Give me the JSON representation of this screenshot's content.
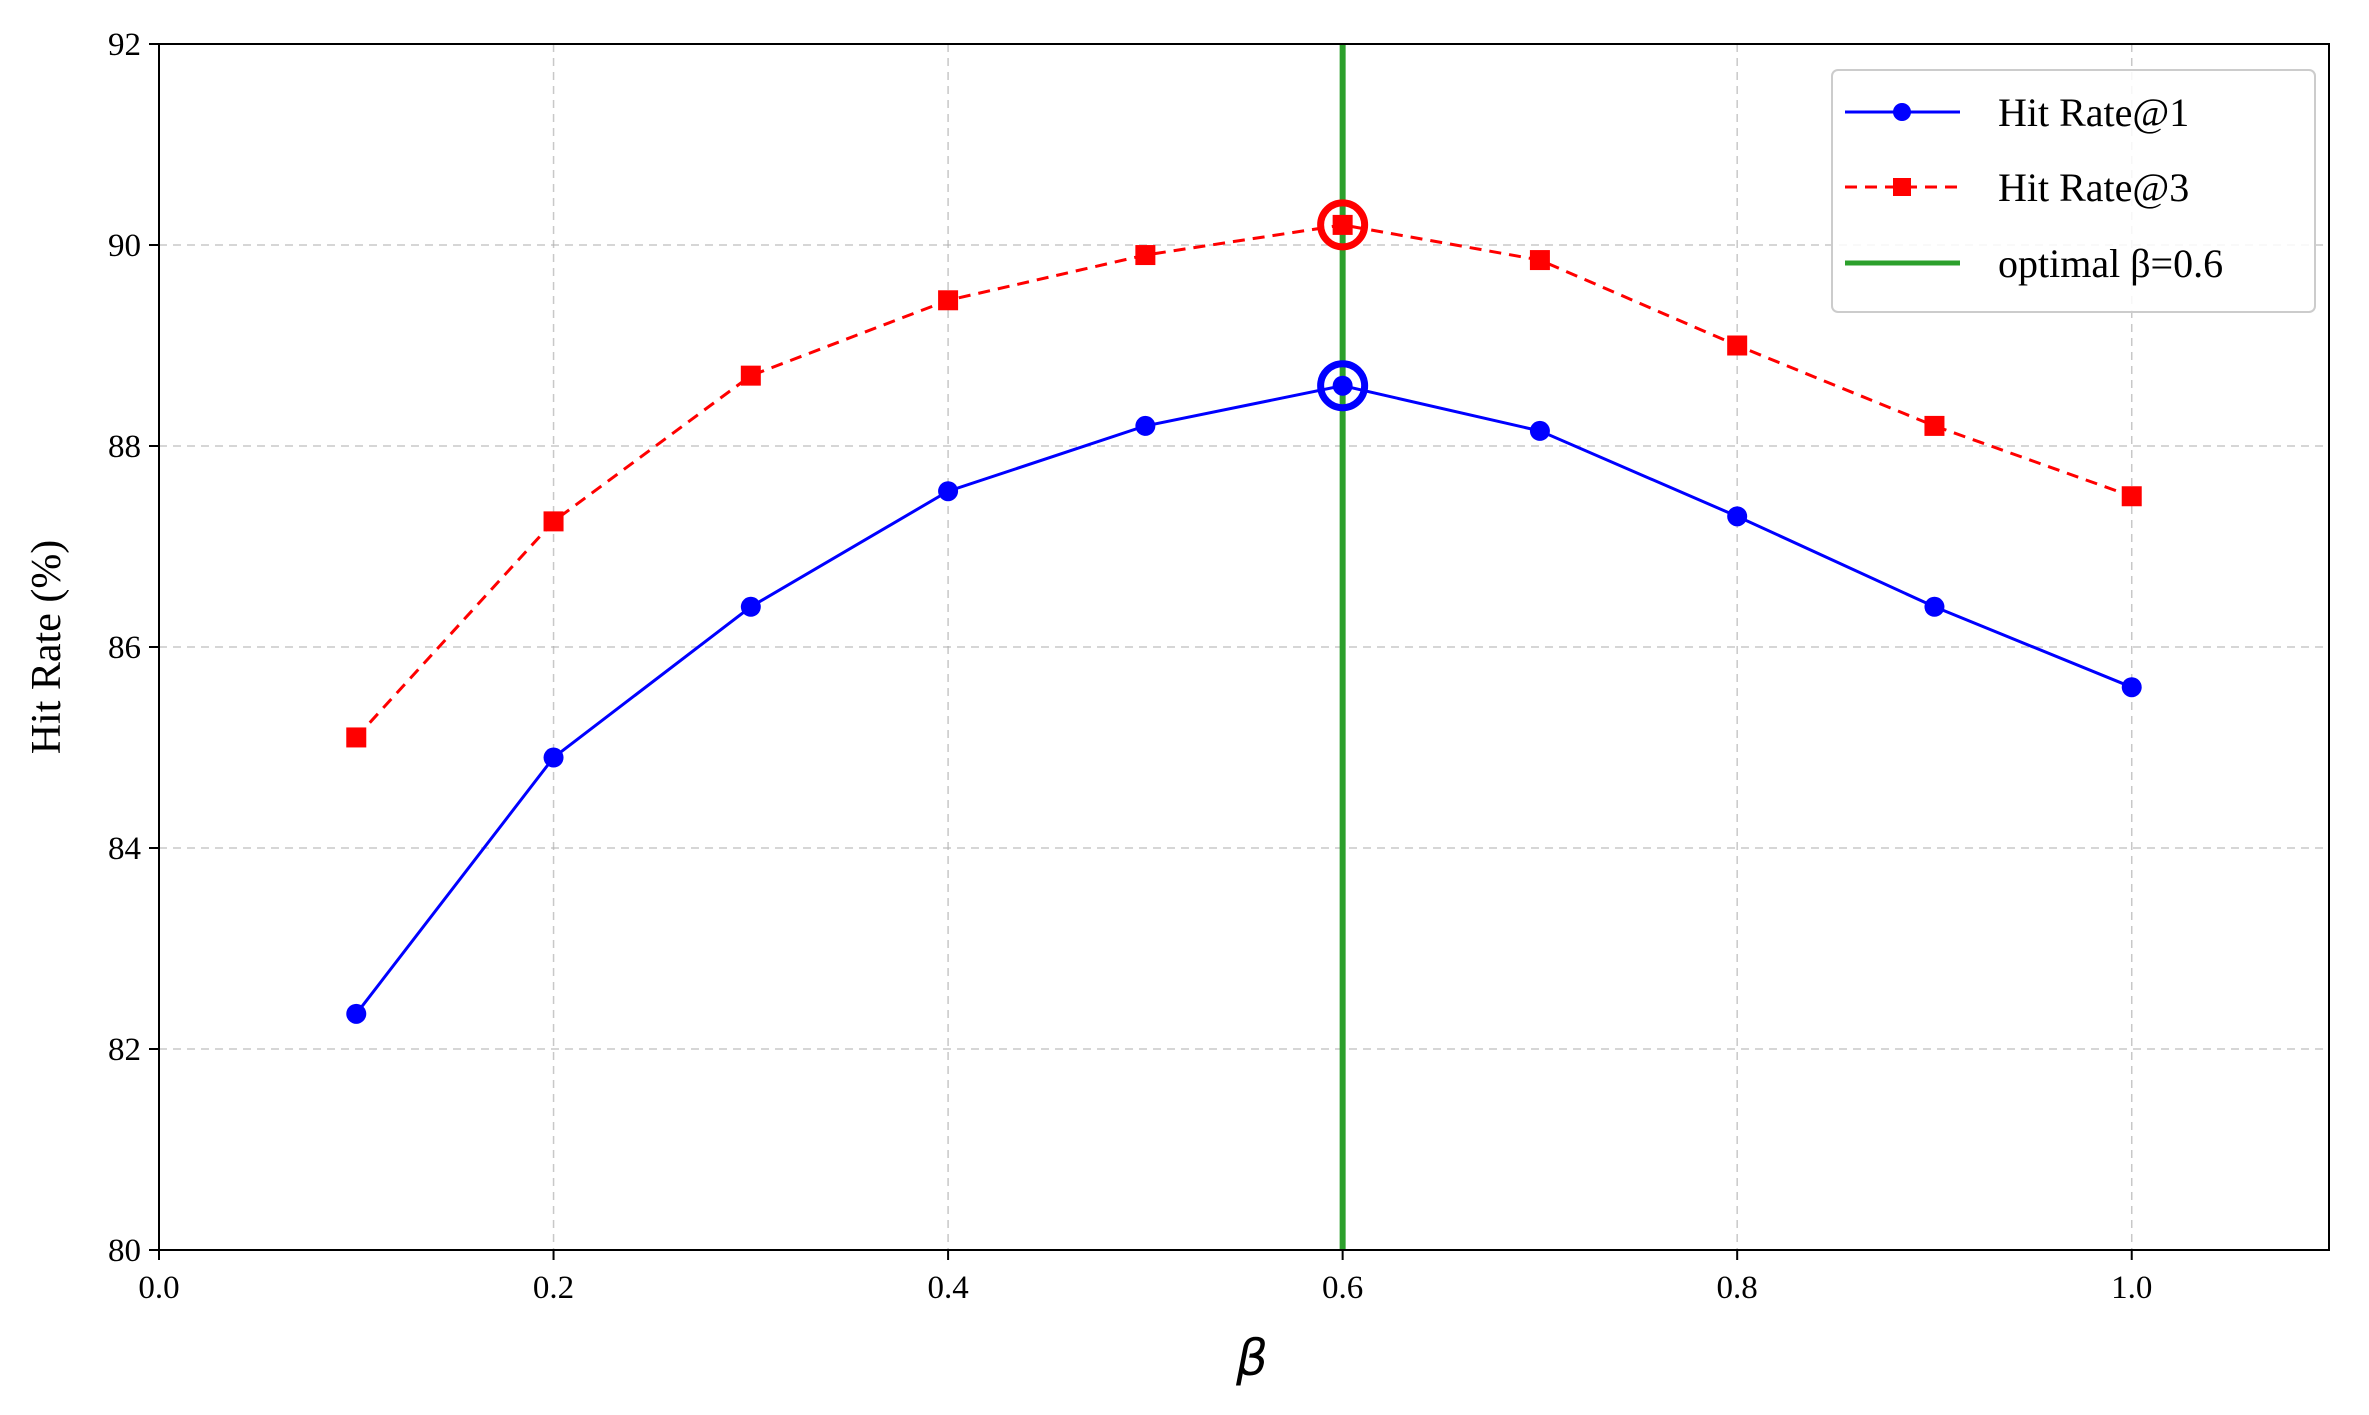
{
  "chart_data": {
    "type": "line",
    "title": "",
    "xlabel": "β",
    "ylabel": "Hit Rate (%)",
    "xlim": [
      0.0,
      1.1
    ],
    "ylim": [
      80,
      92
    ],
    "xticks": [
      0.0,
      0.2,
      0.4,
      0.6,
      0.8,
      1.0
    ],
    "xtick_labels": [
      "0.0",
      "0.2",
      "0.4",
      "0.6",
      "0.8",
      "1.0"
    ],
    "yticks": [
      80,
      82,
      84,
      86,
      88,
      90,
      92
    ],
    "ytick_labels": [
      "80",
      "82",
      "84",
      "86",
      "88",
      "90",
      "92"
    ],
    "grid": true,
    "legend_position": "top-right",
    "x": [
      0.1,
      0.2,
      0.3,
      0.4,
      0.5,
      0.6,
      0.7,
      0.8,
      0.9,
      1.0
    ],
    "series": [
      {
        "name": "Hit Rate@1",
        "color": "#0000ff",
        "marker": "circle",
        "line_style": "solid",
        "values": [
          82.35,
          84.9,
          86.4,
          87.55,
          88.2,
          88.6,
          88.15,
          87.3,
          86.4,
          85.6
        ],
        "highlight_x": 0.6
      },
      {
        "name": "Hit Rate@3",
        "color": "#ff0000",
        "marker": "square",
        "line_style": "dashed",
        "values": [
          85.1,
          87.25,
          88.7,
          89.45,
          89.9,
          90.2,
          89.85,
          89.0,
          88.2,
          87.5
        ],
        "highlight_x": 0.6
      }
    ],
    "vline": {
      "name": "optimal β=0.6",
      "x": 0.6,
      "color": "#2ca02c"
    }
  }
}
